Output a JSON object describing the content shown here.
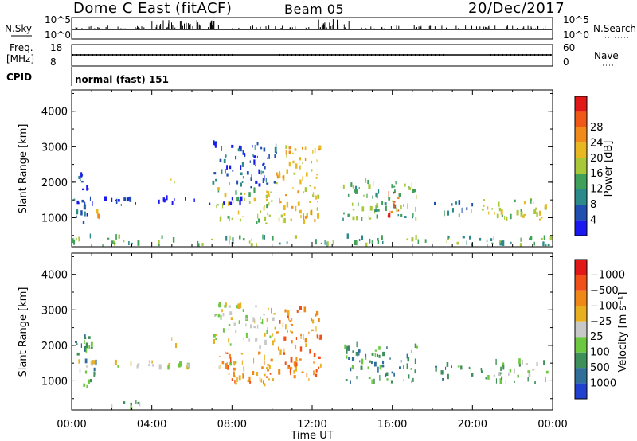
{
  "header": {
    "station": "Dome C East (fitACF)",
    "beam": "Beam 05",
    "date": "20/Dec/2017"
  },
  "top_panels": {
    "nsky": {
      "label": "N.Sky",
      "ytick_top": "10^5",
      "ytick_bottom": "10^0",
      "right_label": "N.Search",
      "rtick_top": "10^5",
      "rtick_bottom": "10^0"
    },
    "freq": {
      "label_line1": "Freq.",
      "label_line2": "[MHz]",
      "ytick_top": "18",
      "ytick_bottom": "8",
      "right_label": "Nave",
      "rtick_top": "60",
      "rtick_bottom": "0"
    },
    "cpid": {
      "label": "CPID",
      "value": "normal (fast) 151"
    }
  },
  "chart_data": [
    {
      "type": "heatmap",
      "title": "",
      "xlabel": "Time UT",
      "ylabel": "Slant Range [km]",
      "x_ticks": [
        "00:00",
        "04:00",
        "08:00",
        "12:00",
        "16:00",
        "20:00",
        "00:00"
      ],
      "y_ticks": [
        "1000",
        "2000",
        "3000",
        "4000"
      ],
      "ylim": [
        180,
        4600
      ],
      "colorbar": {
        "label": "Power [dB]",
        "ticks": [
          "4",
          "8",
          "12",
          "16",
          "20",
          "24",
          "28"
        ],
        "colors": [
          "#1a1af0",
          "#1f4fb0",
          "#2d8a8a",
          "#3fa05a",
          "#a8c83a",
          "#e8b820",
          "#f08a18",
          "#f05818",
          "#e01818"
        ]
      },
      "echo_regions": [
        {
          "t_start": 0.0,
          "t_end": 0.9,
          "r_start": 800,
          "r_end": 2200,
          "level": 1
        },
        {
          "t_start": 0.2,
          "t_end": 8.5,
          "r_start": 1300,
          "r_end": 1500,
          "level": 0
        },
        {
          "t_start": 0.8,
          "t_end": 1.4,
          "r_start": 900,
          "r_end": 1200,
          "level": 6
        },
        {
          "t_start": 4.8,
          "t_end": 5.2,
          "r_start": 1900,
          "r_end": 2200,
          "level": 5
        },
        {
          "t_start": 7.0,
          "t_end": 10.2,
          "r_start": 1800,
          "r_end": 3100,
          "level": 1
        },
        {
          "t_start": 7.2,
          "t_end": 10.0,
          "r_start": 800,
          "r_end": 1800,
          "level": 4
        },
        {
          "t_start": 10.2,
          "t_end": 12.4,
          "r_start": 800,
          "r_end": 3000,
          "level": 5
        },
        {
          "t_start": 13.5,
          "t_end": 17.2,
          "r_start": 900,
          "r_end": 2000,
          "level": 3
        },
        {
          "t_start": 15.6,
          "t_end": 16.3,
          "r_start": 900,
          "r_end": 1700,
          "level": 7
        },
        {
          "t_start": 18.0,
          "t_end": 20.0,
          "r_start": 1000,
          "r_end": 1400,
          "level": 2
        },
        {
          "t_start": 20.4,
          "t_end": 23.8,
          "r_start": 900,
          "r_end": 1500,
          "level": 4
        },
        {
          "t_start": 0.0,
          "t_end": 24.0,
          "r_start": 180,
          "r_end": 420,
          "level": 3
        }
      ]
    },
    {
      "type": "heatmap",
      "title": "",
      "xlabel": "Time UT",
      "ylabel": "Slant Range [km]",
      "x_ticks": [
        "00:00",
        "04:00",
        "08:00",
        "12:00",
        "16:00",
        "20:00",
        "00:00"
      ],
      "y_ticks": [
        "1000",
        "2000",
        "3000",
        "4000"
      ],
      "ylim": [
        180,
        4600
      ],
      "colorbar": {
        "label": "Velocity [m s⁻¹]",
        "ticks": [
          "1000",
          "500",
          "100",
          "25",
          "−25",
          "−100",
          "−500",
          "−1000"
        ],
        "colors": [
          "#2040d0",
          "#2f6f9a",
          "#3f8f5a",
          "#6cc840",
          "#c8c8c8",
          "#e8b020",
          "#f08818",
          "#f05018",
          "#e01818"
        ]
      },
      "echo_regions": [
        {
          "t_start": 0.0,
          "t_end": 1.2,
          "r_start": 800,
          "r_end": 2200,
          "level": 2
        },
        {
          "t_start": 0.2,
          "t_end": 8.5,
          "r_start": 1300,
          "r_end": 1500,
          "level": 4
        },
        {
          "t_start": 4.8,
          "t_end": 5.2,
          "r_start": 1900,
          "r_end": 2200,
          "level": 5
        },
        {
          "t_start": 7.0,
          "t_end": 10.2,
          "r_start": 1900,
          "r_end": 3100,
          "level": 4
        },
        {
          "t_start": 7.2,
          "t_end": 10.0,
          "r_start": 800,
          "r_end": 1800,
          "level": 6
        },
        {
          "t_start": 10.2,
          "t_end": 12.4,
          "r_start": 1000,
          "r_end": 3000,
          "level": 6
        },
        {
          "t_start": 13.5,
          "t_end": 17.2,
          "r_start": 900,
          "r_end": 2000,
          "level": 2
        },
        {
          "t_start": 18.0,
          "t_end": 20.0,
          "r_start": 1000,
          "r_end": 1400,
          "level": 2
        },
        {
          "t_start": 20.4,
          "t_end": 23.8,
          "r_start": 900,
          "r_end": 1500,
          "level": 3
        },
        {
          "t_start": 1.5,
          "t_end": 3.5,
          "r_start": 180,
          "r_end": 400,
          "level": 3
        }
      ]
    }
  ]
}
